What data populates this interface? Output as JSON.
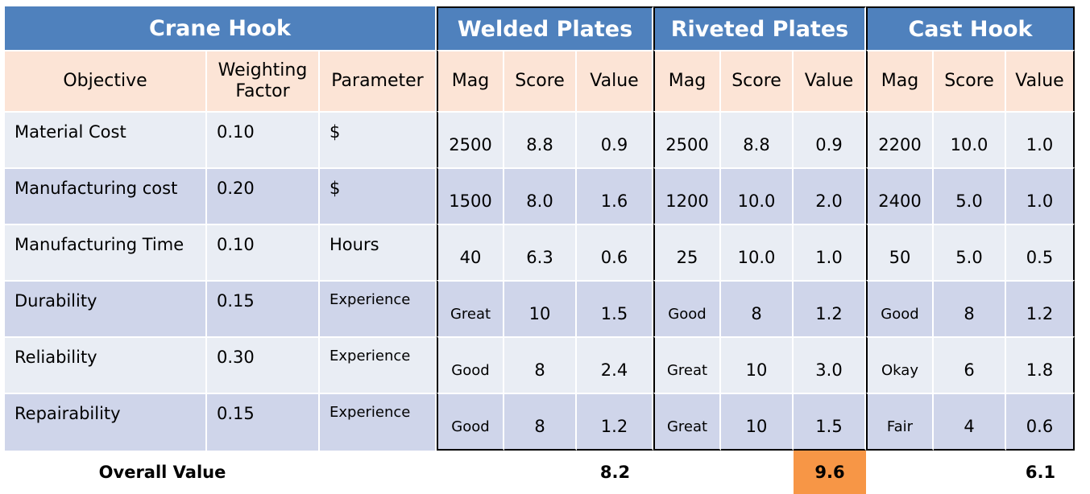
{
  "groups": {
    "crane_hook": "Crane Hook",
    "welded": "Welded Plates",
    "riveted": "Riveted Plates",
    "cast": "Cast Hook"
  },
  "headers": {
    "objective": "Objective",
    "weighting": "Weighting Factor",
    "parameter": "Parameter",
    "mag": "Mag",
    "score": "Score",
    "value": "Value"
  },
  "rows": [
    {
      "objective": "Material Cost",
      "weight": "0.10",
      "parameter": "$",
      "w": {
        "mag": "2500",
        "score": "8.8",
        "value": "0.9"
      },
      "r": {
        "mag": "2500",
        "score": "8.8",
        "value": "0.9"
      },
      "c": {
        "mag": "2200",
        "score": "10.0",
        "value": "1.0"
      }
    },
    {
      "objective": "Manufacturing cost",
      "weight": "0.20",
      "parameter": "$",
      "w": {
        "mag": "1500",
        "score": "8.0",
        "value": "1.6"
      },
      "r": {
        "mag": "1200",
        "score": "10.0",
        "value": "2.0"
      },
      "c": {
        "mag": "2400",
        "score": "5.0",
        "value": "1.0"
      }
    },
    {
      "objective": "Manufacturing Time",
      "weight": "0.10",
      "parameter": "Hours",
      "w": {
        "mag": "40",
        "score": "6.3",
        "value": "0.6"
      },
      "r": {
        "mag": "25",
        "score": "10.0",
        "value": "1.0"
      },
      "c": {
        "mag": "50",
        "score": "5.0",
        "value": "0.5"
      }
    },
    {
      "objective": "Durability",
      "weight": "0.15",
      "parameter": "Experience",
      "w": {
        "mag": "Great",
        "score": "10",
        "value": "1.5"
      },
      "r": {
        "mag": "Good",
        "score": "8",
        "value": "1.2"
      },
      "c": {
        "mag": "Good",
        "score": "8",
        "value": "1.2"
      }
    },
    {
      "objective": "Reliability",
      "weight": "0.30",
      "parameter": "Experience",
      "w": {
        "mag": "Good",
        "score": "8",
        "value": "2.4"
      },
      "r": {
        "mag": "Great",
        "score": "10",
        "value": "3.0"
      },
      "c": {
        "mag": "Okay",
        "score": "6",
        "value": "1.8"
      }
    },
    {
      "objective": "Repairability",
      "weight": "0.15",
      "parameter": "Experience",
      "w": {
        "mag": "Good",
        "score": "8",
        "value": "1.2"
      },
      "r": {
        "mag": "Great",
        "score": "10",
        "value": "1.5"
      },
      "c": {
        "mag": "Fair",
        "score": "4",
        "value": "0.6"
      }
    }
  ],
  "overall": {
    "label": "Overall Value",
    "welded": "8.2",
    "riveted": "9.6",
    "cast": "6.1"
  },
  "colors": {
    "group_header": "#4f81bd",
    "column_header": "#fce4d6",
    "row_light": "#e9edf4",
    "row_dark": "#cfd5ea",
    "highlight": "#f79646"
  }
}
